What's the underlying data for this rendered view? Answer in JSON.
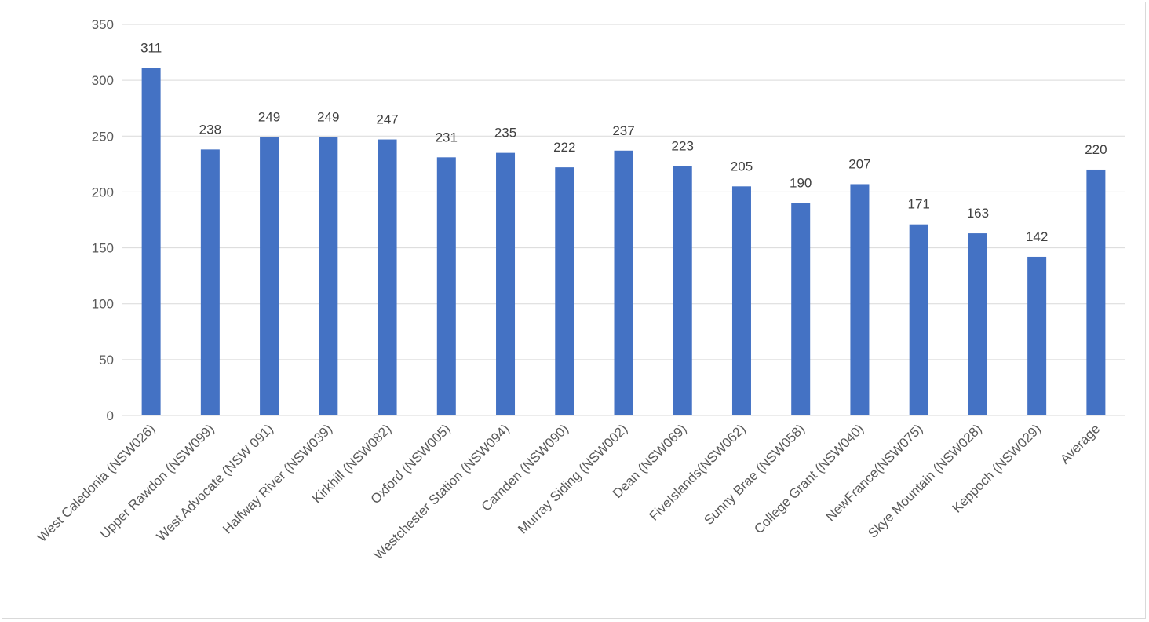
{
  "chart_data": {
    "type": "bar",
    "title": "",
    "xlabel": "",
    "ylabel": "",
    "ylim": [
      0,
      350
    ],
    "ytick_step": 50,
    "grid": true,
    "legend": "none",
    "bar_color": "#4472c4",
    "categories": [
      "West Caledonia (NSW026)",
      "Upper Rawdon (NSW099)",
      "West Advocate (NSW 091)",
      "Halfway River (NSW039)",
      "Kirkhill (NSW082)",
      "Oxford (NSW005)",
      "Westchester Station (NSW094)",
      "Camden (NSW090)",
      "Murray Siding (NSW002)",
      "Dean (NSW069)",
      "FiveIslands(NSW062)",
      "Sunny Brae (NSW058)",
      "College Grant (NSW040)",
      "NewFrance(NSW075)",
      "Skye Mountain (NSW028)",
      "Keppoch (NSW029)",
      "Average"
    ],
    "values": [
      311,
      238,
      249,
      249,
      247,
      231,
      235,
      222,
      237,
      223,
      205,
      190,
      207,
      171,
      163,
      142,
      220
    ],
    "data_labels": [
      "311",
      "238",
      "249",
      "249",
      "247",
      "231",
      "235",
      "222",
      "237",
      "223",
      "205",
      "190",
      "207",
      "171",
      "163",
      "142",
      "220"
    ]
  }
}
